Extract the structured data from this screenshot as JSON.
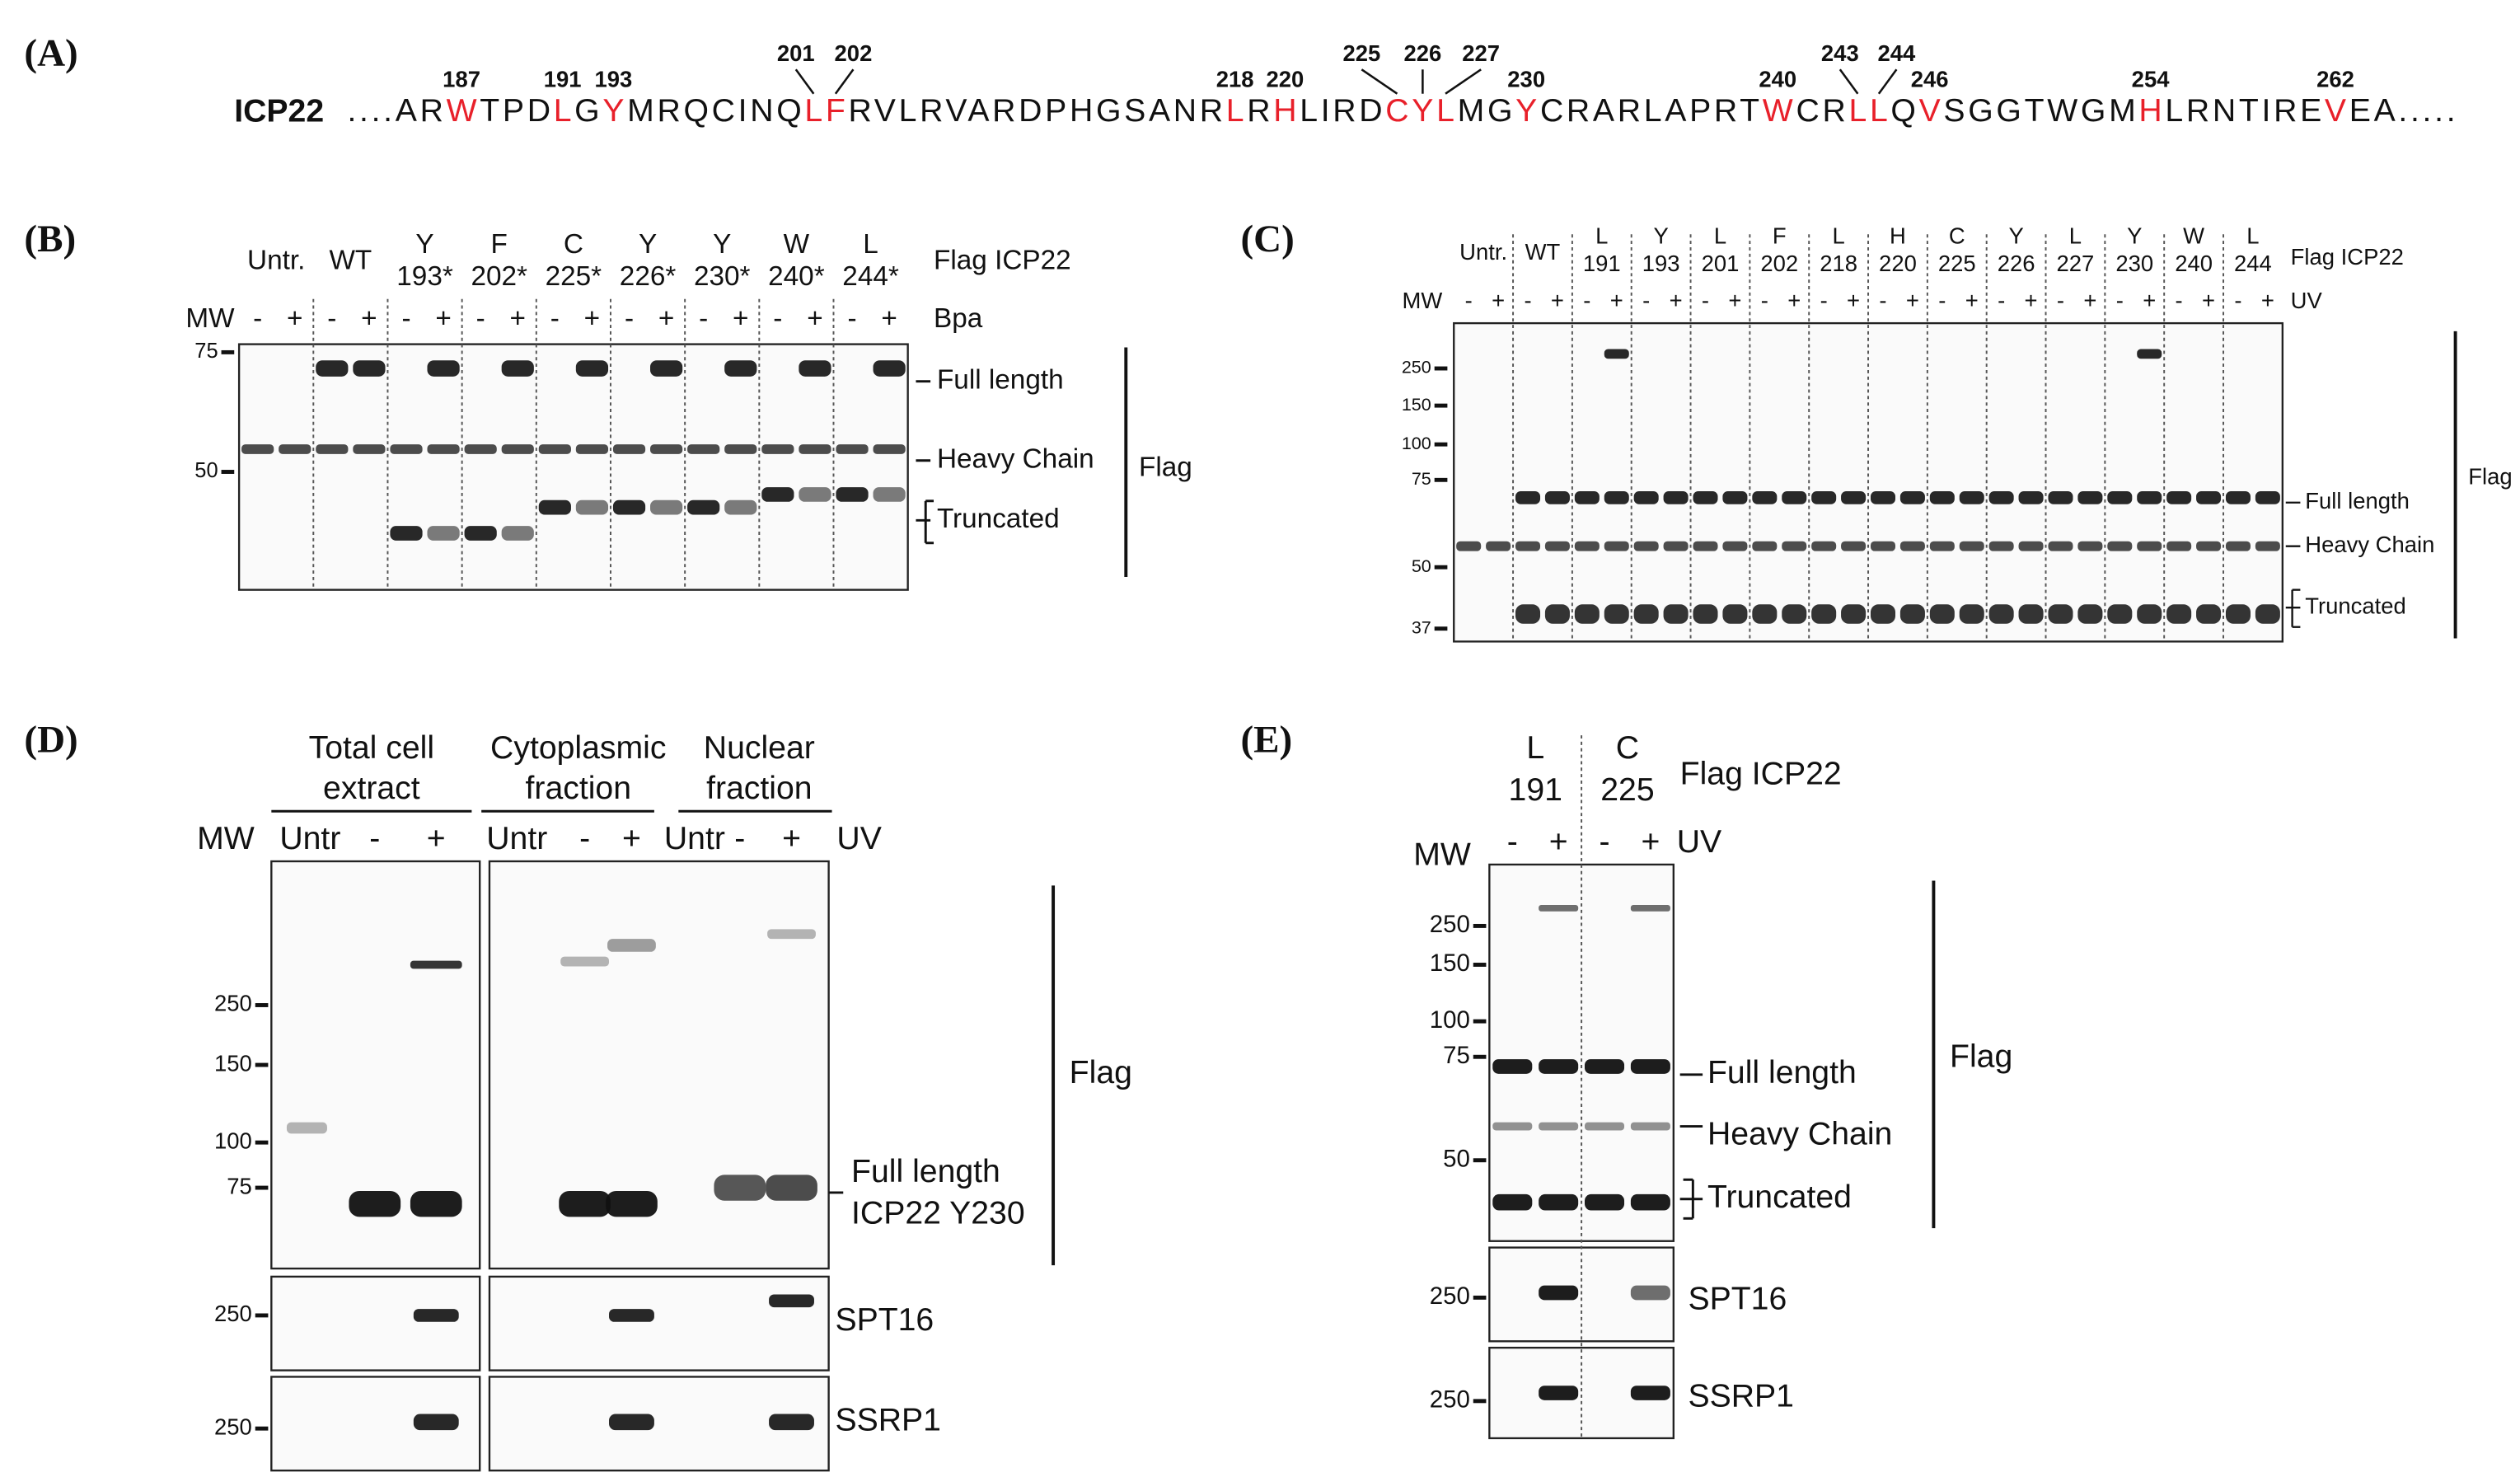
{
  "panel_a": {
    "label": "(A)",
    "protein": "ICP22",
    "sequence": [
      {
        "text": "....AR"
      },
      {
        "text": "W",
        "color": "#e8202a"
      },
      {
        "text": "TPD"
      },
      {
        "text": "L",
        "color": "#e8202a"
      },
      {
        "text": "G"
      },
      {
        "text": "Y",
        "color": "#e8202a"
      },
      {
        "text": "MRQCINQ"
      },
      {
        "text": "LF",
        "color": "#e8202a"
      },
      {
        "text": "RVLRVARDPHGSANR"
      },
      {
        "text": "L",
        "color": "#e8202a"
      },
      {
        "text": "R"
      },
      {
        "text": "H",
        "color": "#e8202a"
      },
      {
        "text": "LIRD"
      },
      {
        "text": "CYL",
        "color": "#e8202a"
      },
      {
        "text": "MG"
      },
      {
        "text": "Y",
        "color": "#e8202a"
      },
      {
        "text": "CRARLAPRT"
      },
      {
        "text": "W",
        "color": "#e8202a"
      },
      {
        "text": "CR"
      },
      {
        "text": "LL",
        "color": "#e8202a"
      },
      {
        "text": "Q"
      },
      {
        "text": "V",
        "color": "#e8202a"
      },
      {
        "text": "SGGTWGM"
      },
      {
        "text": "H",
        "color": "#e8202a"
      },
      {
        "text": "LRNTIRE"
      },
      {
        "text": "V",
        "color": "#e8202a"
      },
      {
        "text": "EA....."
      }
    ],
    "positions": [
      187,
      191,
      193,
      201,
      202,
      218,
      220,
      225,
      226,
      227,
      230,
      240,
      243,
      244,
      246,
      254,
      262
    ]
  },
  "panel_b": {
    "label": "(B)",
    "lanes": [
      [
        "Untr."
      ],
      [
        "WT"
      ],
      [
        "Y",
        "193*"
      ],
      [
        "F",
        "202*"
      ],
      [
        "C",
        "225*"
      ],
      [
        "Y",
        "226*"
      ],
      [
        "Y",
        "230*"
      ],
      [
        "W",
        "240*"
      ],
      [
        "L",
        "244*"
      ]
    ],
    "lane_row_label": "Flag ICP22",
    "treatment_label": "Bpa",
    "signs": [
      "-",
      "+"
    ],
    "mw_label": "MW",
    "markers": [
      75,
      50
    ],
    "bands": [
      "Full length",
      "Heavy Chain",
      "Truncated"
    ],
    "blot_label": "Flag"
  },
  "panel_c": {
    "label": "(C)",
    "lanes": [
      [
        "Untr."
      ],
      [
        "WT"
      ],
      [
        "L",
        "191"
      ],
      [
        "Y",
        "193"
      ],
      [
        "L",
        "201"
      ],
      [
        "F",
        "202"
      ],
      [
        "L",
        "218"
      ],
      [
        "H",
        "220"
      ],
      [
        "C",
        "225"
      ],
      [
        "Y",
        "226"
      ],
      [
        "L",
        "227"
      ],
      [
        "Y",
        "230"
      ],
      [
        "W",
        "240"
      ],
      [
        "L",
        "244"
      ]
    ],
    "lane_row_label": "Flag ICP22",
    "treatment_label": "UV",
    "signs": [
      "-",
      "+"
    ],
    "mw_label": "MW",
    "markers": [
      250,
      150,
      100,
      75,
      50,
      37
    ],
    "bands": [
      "Full length",
      "Heavy Chain",
      "Truncated"
    ],
    "blot_label": "Flag"
  },
  "panel_d": {
    "label": "(D)",
    "groups": [
      [
        "Total cell",
        "extract"
      ],
      [
        "Cytoplasmic",
        "fraction"
      ],
      [
        "Nuclear",
        "fraction"
      ]
    ],
    "lanes": [
      "Untr",
      "-",
      "+"
    ],
    "treatment_label": "UV",
    "mw_label": "MW",
    "markers": [
      250,
      150,
      100,
      75
    ],
    "main_band": [
      "Full length",
      "ICP22 Y230"
    ],
    "blot_label": "Flag",
    "blots": [
      {
        "name": "SPT16",
        "markers": [
          250
        ]
      },
      {
        "name": "SSRP1",
        "markers": [
          250
        ]
      }
    ]
  },
  "panel_e": {
    "label": "(E)",
    "lanes": [
      [
        "L",
        "191"
      ],
      [
        "C",
        "225"
      ]
    ],
    "lane_row_label": "Flag ICP22",
    "signs": [
      "-",
      "+"
    ],
    "treatment_label": "UV",
    "mw_label": "MW",
    "markers": [
      250,
      150,
      100,
      75,
      50
    ],
    "bands": [
      "Full length",
      "Heavy Chain",
      "Truncated"
    ],
    "blot_label": "Flag",
    "blots": [
      {
        "name": "SPT16",
        "markers": [
          250
        ]
      },
      {
        "name": "SSRP1",
        "markers": [
          250
        ]
      }
    ]
  }
}
